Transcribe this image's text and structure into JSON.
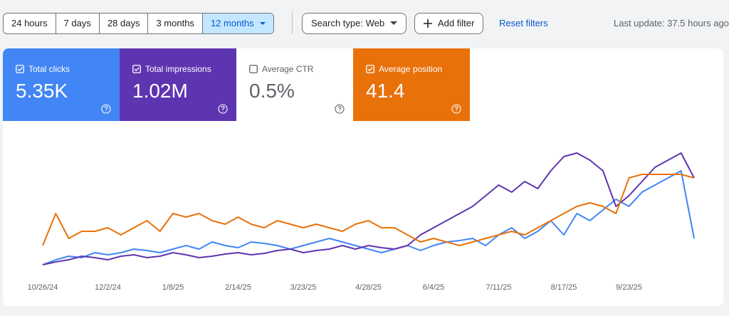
{
  "toolbar": {
    "ranges": [
      "24 hours",
      "7 days",
      "28 days",
      "3 months",
      "12 months"
    ],
    "selected_range": 4,
    "search_type": "Search type: Web",
    "add_filter": "Add filter",
    "reset_filters": "Reset filters",
    "last_update": "Last update: 37.5 hours ago"
  },
  "metrics": [
    {
      "label": "Total clicks",
      "value": "5.35K",
      "checked": true,
      "color": "#4285f4"
    },
    {
      "label": "Total impressions",
      "value": "1.02M",
      "checked": true,
      "color": "#5e35b1"
    },
    {
      "label": "Average CTR",
      "value": "0.5%",
      "checked": false,
      "color": "#ffffff"
    },
    {
      "label": "Average position",
      "value": "41.4",
      "checked": true,
      "color": "#e8710a"
    }
  ],
  "chart_data": {
    "type": "line",
    "categories": [
      "10/26/24",
      null,
      null,
      null,
      null,
      "12/2/24",
      null,
      null,
      null,
      null,
      "1/8/25",
      null,
      null,
      null,
      null,
      "2/14/25",
      null,
      null,
      null,
      null,
      "3/23/25",
      null,
      null,
      null,
      null,
      "4/28/25",
      null,
      null,
      null,
      null,
      "6/4/25",
      null,
      null,
      null,
      null,
      "7/11/25",
      null,
      null,
      null,
      null,
      "8/17/25",
      null,
      null,
      null,
      null,
      "9/23/25",
      null,
      null,
      null,
      null,
      null
    ],
    "ylim": [
      0,
      190
    ],
    "series": [
      {
        "name": "Total clicks",
        "color": "#4285f4",
        "values": [
          13,
          20,
          25,
          23,
          30,
          27,
          30,
          35,
          33,
          30,
          35,
          40,
          35,
          45,
          40,
          37,
          45,
          43,
          40,
          35,
          40,
          45,
          50,
          45,
          40,
          35,
          30,
          35,
          40,
          33,
          40,
          45,
          47,
          50,
          40,
          55,
          65,
          50,
          60,
          75,
          55,
          85,
          75,
          90,
          105,
          95,
          115,
          125,
          135,
          145,
          50
        ]
      },
      {
        "name": "Total impressions",
        "color": "#5e35b1",
        "values": [
          13,
          17,
          20,
          25,
          23,
          20,
          25,
          27,
          23,
          25,
          30,
          27,
          23,
          25,
          28,
          30,
          27,
          29,
          33,
          35,
          30,
          33,
          35,
          40,
          35,
          40,
          37,
          35,
          40,
          55,
          65,
          75,
          85,
          95,
          110,
          125,
          115,
          130,
          120,
          145,
          165,
          170,
          160,
          145,
          95,
          110,
          130,
          150,
          160,
          170,
          135
        ]
      },
      {
        "name": "Average position",
        "color": "#e8710a",
        "values": [
          40,
          85,
          50,
          60,
          60,
          65,
          55,
          65,
          75,
          60,
          85,
          80,
          85,
          75,
          70,
          80,
          70,
          65,
          75,
          70,
          65,
          70,
          65,
          60,
          70,
          75,
          65,
          65,
          55,
          45,
          50,
          45,
          40,
          45,
          50,
          55,
          60,
          55,
          65,
          75,
          85,
          95,
          100,
          95,
          85,
          135,
          140,
          140,
          140,
          140,
          135
        ]
      }
    ]
  }
}
